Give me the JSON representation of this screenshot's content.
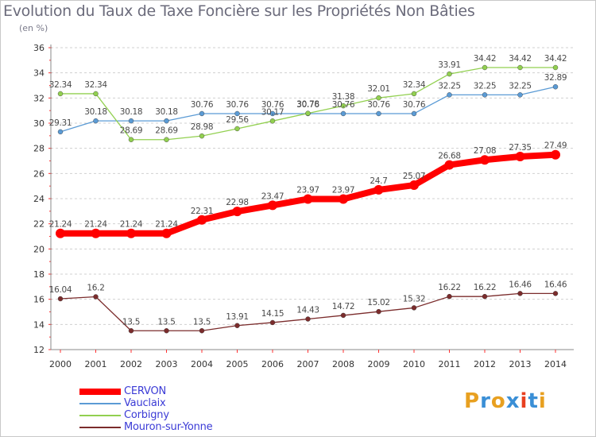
{
  "title": "Evolution du Taux de Taxe Foncière sur les Propriétés Non Bâties",
  "subtitle": "(en %)",
  "logo": {
    "text": "Proxiti",
    "colors": [
      "#e8a020",
      "#3a8fd6",
      "#e8a020",
      "#3a8fd6",
      "#e84020",
      "#3a8fd6",
      "#e8a020"
    ]
  },
  "chart_data": {
    "type": "line",
    "x": [
      "2000",
      "2001",
      "2002",
      "2003",
      "2004",
      "2005",
      "2006",
      "2007",
      "2008",
      "2009",
      "2010",
      "2011",
      "2012",
      "2013",
      "2014"
    ],
    "ylim": [
      12,
      36
    ],
    "yticks": [
      12,
      14,
      16,
      18,
      20,
      22,
      24,
      26,
      28,
      30,
      32,
      34,
      36
    ],
    "grid": "horizontal dashed",
    "legend_position": "bottom-left",
    "series": [
      {
        "name": "CERVON",
        "color": "#ff0000",
        "values": [
          21.24,
          21.24,
          21.24,
          21.24,
          22.31,
          22.98,
          23.47,
          23.97,
          23.97,
          24.7,
          25.07,
          26.68,
          27.08,
          27.35,
          27.49
        ],
        "labels": [
          "21.24",
          "21.24",
          "21.24",
          "21.24",
          "22.31",
          "22.98",
          "23.47",
          "23.97",
          "23.97",
          "24.7",
          "25.07",
          "26.68",
          "27.08",
          "27.35",
          "27.49"
        ]
      },
      {
        "name": "Vauclaix",
        "color": "#5b9bd5",
        "values": [
          29.31,
          30.18,
          30.18,
          30.18,
          30.76,
          30.76,
          30.76,
          30.76,
          30.76,
          30.76,
          30.76,
          32.25,
          32.25,
          32.25,
          32.89
        ],
        "labels": [
          "29.31",
          "30.18",
          "30.18",
          "30.18",
          "30.76",
          "30.76",
          "30.76",
          "30.76",
          "30.76",
          "30.76",
          "30.76",
          "32.25",
          "32.25",
          "32.25",
          "32.89"
        ]
      },
      {
        "name": "Corbigny",
        "color": "#92d050",
        "values": [
          32.34,
          32.34,
          28.69,
          28.69,
          28.98,
          29.56,
          30.17,
          30.78,
          31.38,
          32.01,
          32.34,
          33.91,
          34.42,
          34.42,
          34.42
        ],
        "labels": [
          "32.34",
          "32.34",
          "28.69",
          "28.69",
          "28.98",
          "29.56",
          "30.17",
          "30.78",
          "31.38",
          "32.01",
          "32.34",
          "33.91",
          "34.42",
          "34.42",
          "34.42"
        ]
      },
      {
        "name": "Mouron-sur-Yonne",
        "color": "#7b2c2c",
        "values": [
          16.04,
          16.2,
          13.5,
          13.5,
          13.5,
          13.91,
          14.15,
          14.43,
          14.72,
          15.02,
          15.32,
          16.22,
          16.22,
          16.46,
          16.46
        ],
        "labels": [
          "16.04",
          "16.2",
          "13.5",
          "13.5",
          "13.5",
          "13.91",
          "14.15",
          "14.43",
          "14.72",
          "15.02",
          "15.32",
          "16.22",
          "16.22",
          "16.46",
          "16.46"
        ]
      }
    ]
  }
}
